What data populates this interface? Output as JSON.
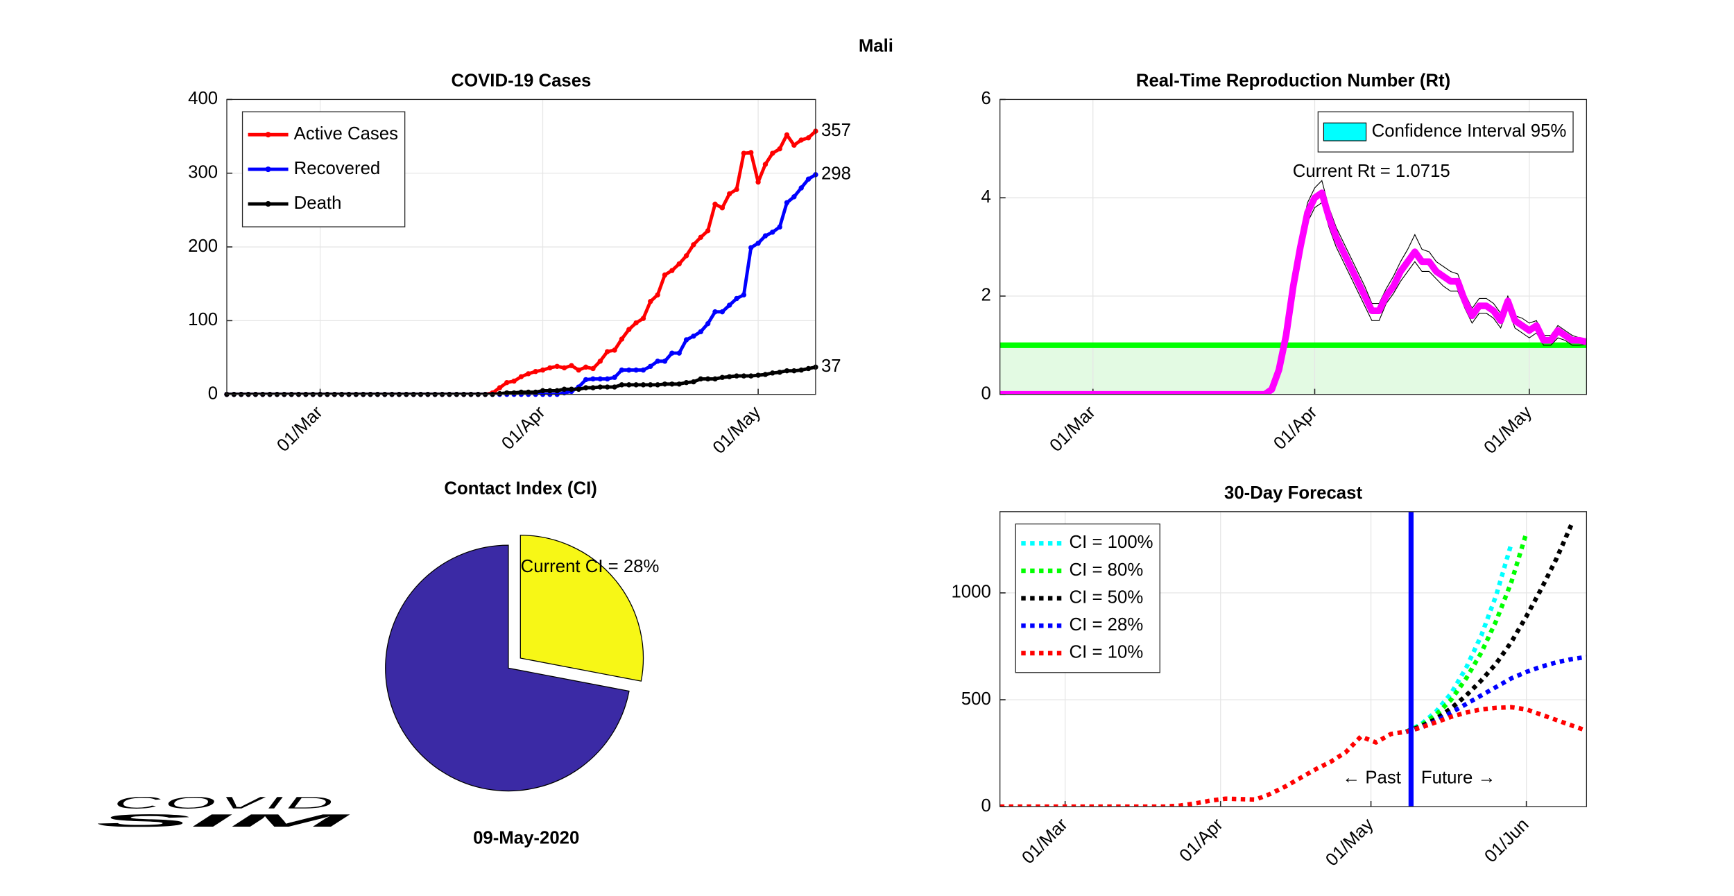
{
  "title": "Mali",
  "logo": {
    "primary": "COVID",
    "secondary": "SIM"
  },
  "chart_data": [
    {
      "type": "line",
      "title": "COVID-19 Cases",
      "xlim": [
        0,
        82
      ],
      "xticks": [
        {
          "value": 13,
          "label": "01/Mar"
        },
        {
          "value": 44,
          "label": "01/Apr"
        },
        {
          "value": 74,
          "label": "01/May"
        }
      ],
      "ylim": [
        0,
        400
      ],
      "yticks": [
        0,
        100,
        200,
        300,
        400
      ],
      "grid": true,
      "legend": "upper-left",
      "markers": true,
      "end_labels": true,
      "line_width": 3,
      "series": [
        {
          "name": "Active Cases",
          "color": "#ff0000",
          "values": [
            0,
            0,
            0,
            0,
            0,
            0,
            0,
            0,
            0,
            0,
            0,
            0,
            0,
            0,
            0,
            0,
            0,
            0,
            0,
            0,
            0,
            0,
            0,
            0,
            0,
            0,
            0,
            0,
            0,
            0,
            0,
            0,
            0,
            0,
            0,
            0,
            0,
            2,
            9,
            16,
            18,
            24,
            28,
            31,
            33,
            36,
            38,
            36,
            39,
            33,
            37,
            35,
            45,
            58,
            60,
            75,
            88,
            97,
            103,
            126,
            135,
            162,
            168,
            177,
            188,
            203,
            213,
            222,
            258,
            253,
            272,
            278,
            327,
            328,
            288,
            312,
            327,
            333,
            352,
            338,
            345,
            348,
            357
          ]
        },
        {
          "name": "Recovered",
          "color": "#0000ff",
          "values": [
            0,
            0,
            0,
            0,
            0,
            0,
            0,
            0,
            0,
            0,
            0,
            0,
            0,
            0,
            0,
            0,
            0,
            0,
            0,
            0,
            0,
            0,
            0,
            0,
            0,
            0,
            0,
            0,
            0,
            0,
            0,
            0,
            0,
            0,
            0,
            0,
            0,
            0,
            0,
            0,
            0,
            0,
            0,
            0,
            0,
            0,
            0,
            2,
            4,
            10,
            20,
            21,
            21,
            21,
            23,
            33,
            33,
            33,
            33,
            38,
            45,
            45,
            56,
            56,
            74,
            79,
            85,
            96,
            112,
            112,
            121,
            130,
            135,
            199,
            205,
            215,
            220,
            227,
            260,
            268,
            280,
            292,
            298
          ]
        },
        {
          "name": "Death",
          "color": "#000000",
          "values": [
            0,
            0,
            0,
            0,
            0,
            0,
            0,
            0,
            0,
            0,
            0,
            0,
            0,
            0,
            0,
            0,
            0,
            0,
            0,
            0,
            0,
            0,
            0,
            0,
            0,
            0,
            0,
            0,
            0,
            0,
            0,
            0,
            0,
            0,
            0,
            0,
            0,
            0,
            1,
            2,
            2,
            3,
            3,
            3,
            5,
            5,
            5,
            7,
            7,
            7,
            9,
            9,
            10,
            10,
            10,
            13,
            13,
            13,
            13,
            13,
            13,
            14,
            14,
            14,
            16,
            17,
            21,
            21,
            21,
            23,
            24,
            25,
            25,
            25,
            26,
            27,
            29,
            30,
            32,
            32,
            33,
            35,
            37
          ]
        }
      ]
    },
    {
      "type": "line",
      "title": "Real-Time Reproduction Number (Rt)",
      "xlim": [
        0,
        82
      ],
      "xticks": [
        {
          "value": 13,
          "label": "01/Mar"
        },
        {
          "value": 44,
          "label": "01/Apr"
        },
        {
          "value": 74,
          "label": "01/May"
        }
      ],
      "ylim": [
        0,
        6
      ],
      "yticks": [
        0,
        2,
        4,
        6
      ],
      "grid": true,
      "legend": "upper-right",
      "line_width": 6,
      "reference_line": {
        "value": 1,
        "color": "#00ff00",
        "fill": "#e3fae3"
      },
      "band": {
        "name": "Confidence Interval 95%",
        "color": "#00ffff",
        "upper": [
          0,
          0,
          0,
          0,
          0,
          0,
          0,
          0,
          0,
          0,
          0,
          0,
          0,
          0,
          0,
          0,
          0,
          0,
          0,
          0,
          0,
          0,
          0,
          0,
          0,
          0,
          0,
          0,
          0,
          0,
          0,
          0,
          0,
          0,
          0,
          0,
          0,
          0,
          0.1,
          0.6,
          1.3,
          2.4,
          3.2,
          3.9,
          4.2,
          4.35,
          3.8,
          3.4,
          3.1,
          2.8,
          2.5,
          2.2,
          1.85,
          1.85,
          2.15,
          2.4,
          2.7,
          2.95,
          3.25,
          2.95,
          2.9,
          2.7,
          2.6,
          2.5,
          2.45,
          2.05,
          1.75,
          1.95,
          1.95,
          1.85,
          1.65,
          2.0,
          1.6,
          1.55,
          1.45,
          1.5,
          1.2,
          1.2,
          1.4,
          1.3,
          1.2,
          1.15,
          1.12
        ],
        "lower": [
          0,
          0,
          0,
          0,
          0,
          0,
          0,
          0,
          0,
          0,
          0,
          0,
          0,
          0,
          0,
          0,
          0,
          0,
          0,
          0,
          0,
          0,
          0,
          0,
          0,
          0,
          0,
          0,
          0,
          0,
          0,
          0,
          0,
          0,
          0,
          0,
          0,
          0,
          0.05,
          0.4,
          1.1,
          2.0,
          2.8,
          3.5,
          3.8,
          3.9,
          3.4,
          3.0,
          2.7,
          2.4,
          2.1,
          1.8,
          1.5,
          1.5,
          1.85,
          2.05,
          2.3,
          2.5,
          2.7,
          2.5,
          2.5,
          2.35,
          2.2,
          2.1,
          2.1,
          1.75,
          1.45,
          1.65,
          1.65,
          1.55,
          1.35,
          1.75,
          1.35,
          1.25,
          1.15,
          1.25,
          1.0,
          1.0,
          1.15,
          1.1,
          1.0,
          1.0,
          1.02
        ]
      },
      "annotations": [
        "Current Rt = 1.0715"
      ],
      "series": [
        {
          "color": "#ff00ff",
          "values": [
            0,
            0,
            0,
            0,
            0,
            0,
            0,
            0,
            0,
            0,
            0,
            0,
            0,
            0,
            0,
            0,
            0,
            0,
            0,
            0,
            0,
            0,
            0,
            0,
            0,
            0,
            0,
            0,
            0,
            0,
            0,
            0,
            0,
            0,
            0,
            0,
            0,
            0,
            0.1,
            0.5,
            1.2,
            2.2,
            3.0,
            3.7,
            4.0,
            4.1,
            3.6,
            3.2,
            2.9,
            2.6,
            2.3,
            2.0,
            1.7,
            1.7,
            2.0,
            2.2,
            2.5,
            2.7,
            2.9,
            2.7,
            2.7,
            2.5,
            2.4,
            2.3,
            2.3,
            1.9,
            1.6,
            1.8,
            1.8,
            1.7,
            1.5,
            1.9,
            1.5,
            1.4,
            1.3,
            1.4,
            1.1,
            1.1,
            1.3,
            1.2,
            1.1,
            1.1,
            1.07
          ]
        }
      ]
    },
    {
      "type": "pie",
      "title": "Contact Index (CI)",
      "values": [
        28,
        72
      ],
      "colors": [
        "#f7f716",
        "#3b2aa5"
      ],
      "explode": [
        true,
        false
      ],
      "annotation": "Current CI = 28%",
      "caption": "09-May-2020"
    },
    {
      "type": "line",
      "title": "30-Day Forecast",
      "x": [
        0,
        3,
        6,
        9,
        12,
        15,
        18,
        21,
        24,
        27,
        30,
        33,
        36,
        39,
        42,
        45,
        48,
        51,
        54,
        57,
        60,
        63,
        66,
        69,
        72,
        75,
        78,
        81,
        84,
        87,
        90,
        93,
        96,
        99,
        102,
        105,
        108,
        111,
        114,
        117
      ],
      "xlim": [
        0,
        117
      ],
      "xticks": [
        {
          "value": 13,
          "label": "01/Mar"
        },
        {
          "value": 44,
          "label": "01/Apr"
        },
        {
          "value": 74,
          "label": "01/May"
        },
        {
          "value": 105,
          "label": "01/Jun"
        }
      ],
      "ylim": [
        0,
        1380
      ],
      "yticks": [
        0,
        500,
        1000
      ],
      "grid": true,
      "legend": "upper-left",
      "line_style": "dotted",
      "line_width": 4,
      "now_line": {
        "value": 82,
        "color": "#0000ff"
      },
      "annotations": [
        "← Past",
        "Future →"
      ],
      "series": [
        {
          "name": "CI = 100%",
          "color": "#00ffff",
          "values": [
            null,
            null,
            null,
            null,
            null,
            null,
            null,
            null,
            null,
            null,
            null,
            null,
            null,
            null,
            null,
            null,
            null,
            null,
            null,
            null,
            null,
            null,
            null,
            null,
            null,
            null,
            null,
            350,
            385,
            445,
            530,
            650,
            800,
            990,
            1230,
            null,
            null,
            null,
            null,
            null
          ]
        },
        {
          "name": "CI = 80%",
          "color": "#00ff00",
          "values": [
            null,
            null,
            null,
            null,
            null,
            null,
            null,
            null,
            null,
            null,
            null,
            null,
            null,
            null,
            null,
            null,
            null,
            null,
            null,
            null,
            null,
            null,
            null,
            null,
            null,
            null,
            null,
            350,
            380,
            430,
            500,
            600,
            720,
            870,
            1050,
            1280,
            null,
            null,
            null,
            null
          ]
        },
        {
          "name": "CI = 50%",
          "color": "#000000",
          "values": [
            null,
            null,
            null,
            null,
            null,
            null,
            null,
            null,
            null,
            null,
            null,
            null,
            null,
            null,
            null,
            null,
            null,
            null,
            null,
            null,
            null,
            null,
            null,
            null,
            null,
            null,
            null,
            350,
            375,
            410,
            460,
            520,
            590,
            670,
            770,
            890,
            1020,
            1160,
            1320,
            null
          ]
        },
        {
          "name": "CI = 28%",
          "color": "#0000ff",
          "values": [
            null,
            null,
            null,
            null,
            null,
            null,
            null,
            null,
            null,
            null,
            null,
            null,
            null,
            null,
            null,
            null,
            null,
            null,
            null,
            null,
            null,
            null,
            null,
            null,
            null,
            null,
            null,
            350,
            370,
            400,
            440,
            480,
            520,
            560,
            600,
            630,
            655,
            675,
            690,
            700
          ]
        },
        {
          "name": "CI = 10%",
          "color": "#ff0000",
          "values": [
            0,
            0,
            0,
            0,
            0,
            0,
            0,
            0,
            0,
            0,
            0,
            0,
            5,
            15,
            28,
            37,
            35,
            33,
            60,
            95,
            135,
            175,
            210,
            255,
            328,
            300,
            340,
            350,
            370,
            395,
            420,
            440,
            455,
            462,
            465,
            455,
            430,
            405,
            380,
            355
          ]
        }
      ]
    }
  ]
}
